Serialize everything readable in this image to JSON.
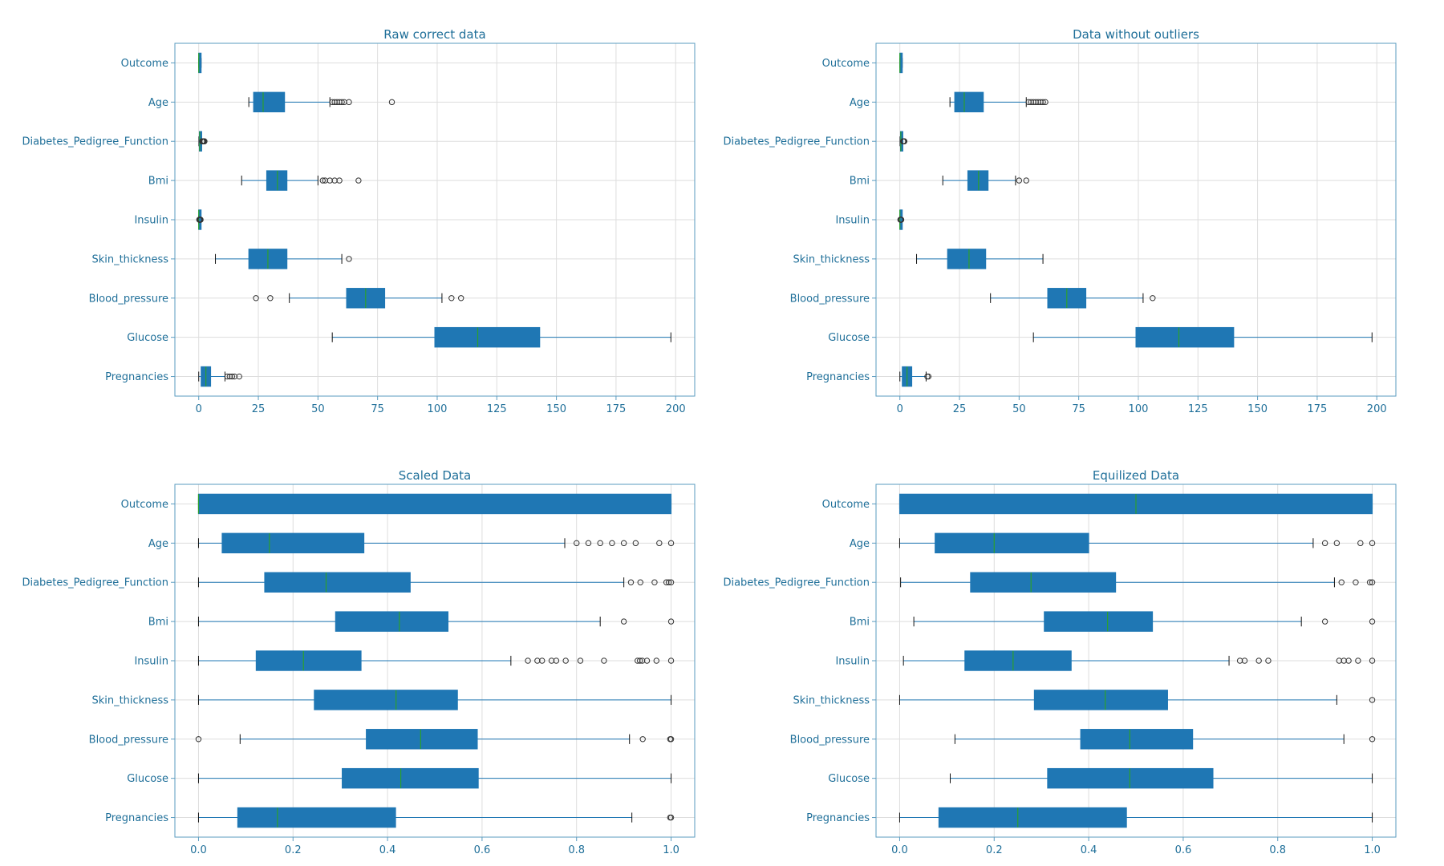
{
  "colors": {
    "text": "#1f6f99",
    "box": "#1f77b4",
    "median": "#2ca02c",
    "grid": "#dddddd",
    "frame": "#5a9bbf",
    "whisker": "#1f77b4",
    "flier": "#333333"
  },
  "chart_data": [
    {
      "type": "boxplot",
      "orientation": "horizontal",
      "title": "Raw correct data",
      "xlim": [
        -10,
        208
      ],
      "xticks": [
        0,
        25,
        50,
        75,
        100,
        125,
        150,
        175,
        200
      ],
      "xtick_labels": [
        "0",
        "25",
        "50",
        "75",
        "100",
        "125",
        "150",
        "175",
        "200"
      ],
      "grid": true,
      "categories": [
        "Outcome",
        "Age",
        "Diabetes_Pedigree_Function",
        "Bmi",
        "Insulin",
        "Skin_thickness",
        "Blood_pressure",
        "Glucose",
        "Pregnancies"
      ],
      "boxes": [
        {
          "q1": 0,
          "median": 0,
          "q3": 1,
          "whislo": 0,
          "whishi": 1,
          "fliers": []
        },
        {
          "q1": 23,
          "median": 27,
          "q3": 36,
          "whislo": 21,
          "whishi": 55,
          "fliers": [
            56,
            57,
            58,
            59,
            60,
            61,
            63,
            81
          ]
        },
        {
          "q1": 0.25,
          "median": 0.4,
          "q3": 0.65,
          "whislo": 0.08,
          "whishi": 1.25,
          "fliers": [
            1.4,
            1.6,
            1.8,
            2.0,
            2.3,
            2.42
          ]
        },
        {
          "q1": 28.5,
          "median": 33,
          "q3": 37,
          "whislo": 18,
          "whishi": 50,
          "fliers": [
            52,
            53,
            55,
            57,
            59,
            67
          ]
        },
        {
          "q1": 0,
          "median": 0,
          "q3": 0,
          "whislo": 0,
          "whishi": 0,
          "fliers": [
            0.2,
            0.4,
            0.6,
            0.8
          ]
        },
        {
          "q1": 21,
          "median": 29,
          "q3": 37,
          "whislo": 7,
          "whishi": 60,
          "fliers": [
            63
          ]
        },
        {
          "q1": 62,
          "median": 70,
          "q3": 78,
          "whislo": 38,
          "whishi": 102,
          "fliers": [
            24,
            30,
            106,
            110
          ]
        },
        {
          "q1": 99,
          "median": 117,
          "q3": 143,
          "whislo": 56,
          "whishi": 198,
          "fliers": []
        },
        {
          "q1": 1,
          "median": 3,
          "q3": 5,
          "whislo": 0,
          "whishi": 11,
          "fliers": [
            12,
            13,
            14,
            15,
            17
          ]
        }
      ]
    },
    {
      "type": "boxplot",
      "orientation": "horizontal",
      "title": "Data without outliers",
      "xlim": [
        -10,
        208
      ],
      "xticks": [
        0,
        25,
        50,
        75,
        100,
        125,
        150,
        175,
        200
      ],
      "xtick_labels": [
        "0",
        "25",
        "50",
        "75",
        "100",
        "125",
        "150",
        "175",
        "200"
      ],
      "grid": true,
      "categories": [
        "Outcome",
        "Age",
        "Diabetes_Pedigree_Function",
        "Bmi",
        "Insulin",
        "Skin_thickness",
        "Blood_pressure",
        "Glucose",
        "Pregnancies"
      ],
      "boxes": [
        {
          "q1": 0,
          "median": 0,
          "q3": 1,
          "whislo": 0,
          "whishi": 1,
          "fliers": []
        },
        {
          "q1": 23,
          "median": 27,
          "q3": 35,
          "whislo": 21,
          "whishi": 53,
          "fliers": [
            54,
            55,
            56,
            57,
            58,
            59,
            60,
            61
          ]
        },
        {
          "q1": 0.25,
          "median": 0.4,
          "q3": 0.65,
          "whislo": 0.08,
          "whishi": 1.2,
          "fliers": [
            1.35,
            1.5,
            1.7,
            1.9
          ]
        },
        {
          "q1": 28.5,
          "median": 33,
          "q3": 37,
          "whislo": 18,
          "whishi": 48.5,
          "fliers": [
            50,
            53
          ]
        },
        {
          "q1": 0,
          "median": 0,
          "q3": 0,
          "whislo": 0,
          "whishi": 0,
          "fliers": [
            0.2,
            0.4,
            0.6
          ]
        },
        {
          "q1": 20,
          "median": 29,
          "q3": 36,
          "whislo": 7,
          "whishi": 60,
          "fliers": []
        },
        {
          "q1": 62,
          "median": 70,
          "q3": 78,
          "whislo": 38,
          "whishi": 102,
          "fliers": [
            106
          ]
        },
        {
          "q1": 99,
          "median": 117,
          "q3": 140,
          "whislo": 56,
          "whishi": 198,
          "fliers": []
        },
        {
          "q1": 1,
          "median": 3,
          "q3": 5,
          "whislo": 0,
          "whishi": 11,
          "fliers": [
            11.5,
            12
          ]
        }
      ]
    },
    {
      "type": "boxplot",
      "orientation": "horizontal",
      "title": "Scaled Data",
      "xlim": [
        -0.05,
        1.05
      ],
      "xticks": [
        0,
        0.2,
        0.4,
        0.6,
        0.8,
        1.0
      ],
      "xtick_labels": [
        "0.0",
        "0.2",
        "0.4",
        "0.6",
        "0.8",
        "1.0"
      ],
      "grid": true,
      "categories": [
        "Outcome",
        "Age",
        "Diabetes_Pedigree_Function",
        "Bmi",
        "Insulin",
        "Skin_thickness",
        "Blood_pressure",
        "Glucose",
        "Pregnancies"
      ],
      "boxes": [
        {
          "q1": 0,
          "median": 0,
          "q3": 1,
          "whislo": 0,
          "whishi": 1,
          "fliers": []
        },
        {
          "q1": 0.05,
          "median": 0.15,
          "q3": 0.35,
          "whislo": 0,
          "whishi": 0.775,
          "fliers": [
            0.8,
            0.825,
            0.85,
            0.875,
            0.9,
            0.925,
            0.975,
            1.0
          ]
        },
        {
          "q1": 0.14,
          "median": 0.27,
          "q3": 0.448,
          "whislo": 0,
          "whishi": 0.9,
          "fliers": [
            0.915,
            0.935,
            0.965,
            0.99,
            0.995,
            1.0
          ]
        },
        {
          "q1": 0.29,
          "median": 0.425,
          "q3": 0.528,
          "whislo": 0,
          "whishi": 0.85,
          "fliers": [
            0.9,
            1.0
          ]
        },
        {
          "q1": 0.122,
          "median": 0.222,
          "q3": 0.344,
          "whislo": 0,
          "whishi": 0.661,
          "fliers": [
            0.697,
            0.717,
            0.727,
            0.747,
            0.757,
            0.777,
            0.808,
            0.858,
            0.929,
            0.934,
            0.939,
            0.949,
            0.969,
            1.0
          ]
        },
        {
          "q1": 0.245,
          "median": 0.418,
          "q3": 0.548,
          "whislo": 0,
          "whishi": 1.0,
          "fliers": []
        },
        {
          "q1": 0.355,
          "median": 0.47,
          "q3": 0.59,
          "whislo": 0.088,
          "whishi": 0.912,
          "fliers": [
            0,
            0.94,
            0.998,
            1.0
          ]
        },
        {
          "q1": 0.304,
          "median": 0.428,
          "q3": 0.592,
          "whislo": 0,
          "whishi": 1.0,
          "fliers": []
        },
        {
          "q1": 0.083,
          "median": 0.167,
          "q3": 0.417,
          "whislo": 0,
          "whishi": 0.917,
          "fliers": [
            0.998,
            1.0
          ]
        }
      ]
    },
    {
      "type": "boxplot",
      "orientation": "horizontal",
      "title": "Equilized Data",
      "xlim": [
        -0.05,
        1.05
      ],
      "xticks": [
        0,
        0.2,
        0.4,
        0.6,
        0.8,
        1.0
      ],
      "xtick_labels": [
        "0.0",
        "0.2",
        "0.4",
        "0.6",
        "0.8",
        "1.0"
      ],
      "grid": true,
      "categories": [
        "Outcome",
        "Age",
        "Diabetes_Pedigree_Function",
        "Bmi",
        "Insulin",
        "Skin_thickness",
        "Blood_pressure",
        "Glucose",
        "Pregnancies"
      ],
      "boxes": [
        {
          "q1": 0,
          "median": 0.5,
          "q3": 1,
          "whislo": 0,
          "whishi": 1,
          "fliers": []
        },
        {
          "q1": 0.075,
          "median": 0.2,
          "q3": 0.4,
          "whislo": 0,
          "whishi": 0.875,
          "fliers": [
            0.9,
            0.925,
            0.975,
            1.0
          ]
        },
        {
          "q1": 0.15,
          "median": 0.278,
          "q3": 0.457,
          "whislo": 0.002,
          "whishi": 0.92,
          "fliers": [
            0.935,
            0.965,
            0.995,
            1.0
          ]
        },
        {
          "q1": 0.306,
          "median": 0.44,
          "q3": 0.535,
          "whislo": 0.03,
          "whishi": 0.85,
          "fliers": [
            0.9,
            1.0
          ]
        },
        {
          "q1": 0.138,
          "median": 0.24,
          "q3": 0.363,
          "whislo": 0.008,
          "whishi": 0.697,
          "fliers": [
            0.72,
            0.73,
            0.76,
            0.78,
            0.93,
            0.94,
            0.95,
            0.97,
            1.0
          ]
        },
        {
          "q1": 0.285,
          "median": 0.435,
          "q3": 0.567,
          "whislo": 0,
          "whishi": 0.925,
          "fliers": [
            1.0
          ]
        },
        {
          "q1": 0.383,
          "median": 0.487,
          "q3": 0.62,
          "whislo": 0.117,
          "whishi": 0.94,
          "fliers": [
            1.0
          ]
        },
        {
          "q1": 0.313,
          "median": 0.487,
          "q3": 0.663,
          "whislo": 0.107,
          "whishi": 1.0,
          "fliers": []
        },
        {
          "q1": 0.083,
          "median": 0.25,
          "q3": 0.48,
          "whislo": 0,
          "whishi": 1.0,
          "fliers": []
        }
      ]
    }
  ]
}
